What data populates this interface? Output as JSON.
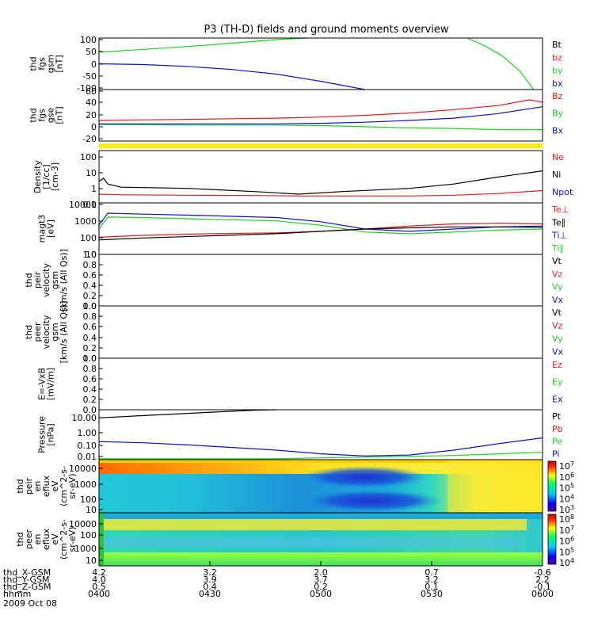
{
  "title": "P3 (TH-D) fields and ground moments overview",
  "colors": {
    "black": "#000000",
    "red": "#e41a1c",
    "green": "#1fd01f",
    "blue": "#1010c8",
    "yellow": "#ffee00"
  },
  "chart_data": [
    {
      "id": "fgs-gsm",
      "type": "line",
      "ylabel": [
        "thd",
        "fgs",
        "gsm",
        "[nT]"
      ],
      "yticks": [
        "100",
        "50",
        "0",
        "-50",
        "-100"
      ],
      "ylim": [
        -100,
        100
      ],
      "legend": [
        {
          "label": "Bt",
          "color": "#000000"
        },
        {
          "label": "bz",
          "color": "#e41a1c"
        },
        {
          "label": "by",
          "color": "#1fd01f"
        },
        {
          "label": "bx",
          "color": "#1010c8"
        }
      ],
      "series": [
        {
          "color": "#1fd01f",
          "x": [
            0,
            0.1,
            0.2,
            0.3,
            0.4,
            0.47
          ],
          "y": [
            45,
            56,
            67,
            80,
            94,
            100
          ]
        },
        {
          "color": "#1fd01f",
          "x": [
            0.83,
            0.87,
            0.91,
            0.95,
            0.98
          ],
          "y": [
            100,
            70,
            30,
            -30,
            -100
          ]
        },
        {
          "color": "#1010c8",
          "x": [
            0,
            0.1,
            0.2,
            0.3,
            0.4,
            0.5,
            0.6
          ],
          "y": [
            0,
            -3,
            -10,
            -22,
            -40,
            -68,
            -100
          ]
        }
      ]
    },
    {
      "id": "fgs-gse",
      "type": "line",
      "ylabel": [
        "thd",
        "fgs",
        "gse",
        "[nT]"
      ],
      "yticks": [
        "60",
        "40",
        "20",
        "0",
        "-20"
      ],
      "ylim": [
        -30,
        60
      ],
      "legend": [
        {
          "label": "Bz",
          "color": "#e41a1c"
        },
        {
          "label": "By",
          "color": "#1fd01f"
        },
        {
          "label": "Bx",
          "color": "#1010c8"
        }
      ],
      "series": [
        {
          "color": "#e41a1c",
          "x": [
            0,
            0.1,
            0.2,
            0.3,
            0.4,
            0.5,
            0.6,
            0.7,
            0.8,
            0.9,
            0.97,
            1
          ],
          "y": [
            6,
            7,
            8,
            9,
            10,
            12,
            15,
            19,
            25,
            32,
            42,
            38
          ]
        },
        {
          "color": "#1fd01f",
          "x": [
            0,
            0.2,
            0.4,
            0.5,
            0.6,
            0.7,
            0.8,
            0.9,
            1
          ],
          "y": [
            -1,
            -2,
            -2,
            -3,
            -5,
            -7,
            -8,
            -10,
            -10
          ]
        },
        {
          "color": "#1010c8",
          "x": [
            0,
            0.2,
            0.4,
            0.5,
            0.6,
            0.7,
            0.8,
            0.9,
            1
          ],
          "y": [
            0,
            0,
            0,
            1,
            3,
            6,
            10,
            18,
            30
          ]
        }
      ]
    },
    {
      "id": "density",
      "type": "line",
      "log": true,
      "ylabel": [
        "Density",
        "[1/cc]",
        "[cm-3]"
      ],
      "yticks": [
        "100",
        "10",
        "1",
        "0.1"
      ],
      "ylim": [
        0.05,
        200
      ],
      "legend": [
        {
          "label": "Ne",
          "color": "#e41a1c"
        },
        {
          "label": "Ni",
          "color": "#000000"
        },
        {
          "label": "Npot",
          "color": "#1010c8"
        }
      ],
      "series": [
        {
          "color": "#000000",
          "x": [
            0,
            0.01,
            0.02,
            0.05,
            0.2,
            0.35,
            0.45,
            0.55,
            0.7,
            0.8,
            0.9,
            1
          ],
          "y": [
            1.5,
            2.5,
            1,
            0.6,
            0.5,
            0.3,
            0.2,
            0.3,
            0.5,
            1,
            3,
            8
          ]
        },
        {
          "color": "#e41a1c",
          "x": [
            0,
            0.05,
            0.2,
            0.35,
            0.45,
            0.55,
            0.7,
            0.8,
            0.9,
            1
          ],
          "y": [
            0.2,
            0.18,
            0.17,
            0.16,
            0.15,
            0.15,
            0.15,
            0.17,
            0.22,
            0.35
          ]
        }
      ]
    },
    {
      "id": "temperature",
      "type": "line",
      "log": true,
      "ylabel": [
        "magt3",
        "[eV]"
      ],
      "yticks": [
        "10000",
        "1000",
        "100",
        "10"
      ],
      "ylim": [
        10,
        10000
      ],
      "legend": [
        {
          "label": "Te⊥",
          "color": "#e41a1c"
        },
        {
          "label": "Te∥",
          "color": "#000000"
        },
        {
          "label": "Ti⊥",
          "color": "#1010c8"
        },
        {
          "label": "Ti∥",
          "color": "#1fd01f"
        }
      ],
      "series": [
        {
          "color": "#1010c8",
          "x": [
            0,
            0.02,
            0.1,
            0.25,
            0.4,
            0.5,
            0.6,
            0.7,
            0.8,
            0.9,
            1
          ],
          "y": [
            500,
            2500,
            2200,
            1800,
            1400,
            800,
            300,
            220,
            300,
            400,
            450
          ]
        },
        {
          "color": "#1fd01f",
          "x": [
            0,
            0.02,
            0.1,
            0.25,
            0.4,
            0.5,
            0.6,
            0.7,
            0.8,
            0.9,
            1
          ],
          "y": [
            300,
            1500,
            1400,
            1100,
            900,
            500,
            200,
            160,
            200,
            260,
            300
          ]
        },
        {
          "color": "#e41a1c",
          "x": [
            0,
            0.1,
            0.25,
            0.4,
            0.5,
            0.6,
            0.7,
            0.8,
            0.9,
            1
          ],
          "y": [
            100,
            130,
            160,
            180,
            220,
            300,
            450,
            600,
            650,
            600
          ]
        },
        {
          "color": "#000000",
          "x": [
            0,
            0.1,
            0.25,
            0.4,
            0.5,
            0.6,
            0.7,
            0.8,
            0.9,
            1
          ],
          "y": [
            70,
            90,
            120,
            160,
            220,
            300,
            350,
            400,
            400,
            380
          ]
        }
      ]
    },
    {
      "id": "peir-velocity",
      "type": "line",
      "ylabel": [
        "thd",
        "peir",
        "velocity",
        "gsm",
        "[km/s (All Qs)]"
      ],
      "yticks": [
        "1.0",
        "0.8",
        "0.6",
        "0.4",
        "0.2",
        "0.0"
      ],
      "ylim": [
        0,
        1
      ],
      "legend": [
        {
          "label": "Vt",
          "color": "#000000"
        },
        {
          "label": "Vz",
          "color": "#e41a1c"
        },
        {
          "label": "Vy",
          "color": "#1fd01f"
        },
        {
          "label": "Vx",
          "color": "#1010c8"
        }
      ],
      "series": []
    },
    {
      "id": "peer-velocity",
      "type": "line",
      "ylabel": [
        "thd",
        "peer",
        "velocity",
        "gsm",
        "[km/s (All Qs)]"
      ],
      "yticks": [
        "1.0",
        "0.8",
        "0.6",
        "0.4",
        "0.2",
        "0.0"
      ],
      "ylim": [
        0,
        1
      ],
      "legend": [
        {
          "label": "Vt",
          "color": "#000000"
        },
        {
          "label": "Vz",
          "color": "#e41a1c"
        },
        {
          "label": "Vy",
          "color": "#1fd01f"
        },
        {
          "label": "Vx",
          "color": "#1010c8"
        }
      ],
      "series": []
    },
    {
      "id": "efield",
      "type": "line",
      "ylabel": [
        "E=-VxB",
        "[mV/m]"
      ],
      "yticks": [
        "1.0",
        "0.8",
        "0.6",
        "0.4",
        "0.2",
        "0.0"
      ],
      "ylim": [
        0,
        1
      ],
      "legend": [
        {
          "label": "Ez",
          "color": "#e41a1c"
        },
        {
          "label": "Ey",
          "color": "#1fd01f"
        },
        {
          "label": "Ex",
          "color": "#1010c8"
        }
      ],
      "series": []
    },
    {
      "id": "pressure",
      "type": "line",
      "log": true,
      "ylabel": [
        "Pressure",
        "[nPa]"
      ],
      "yticks": [
        "10.00",
        "1.00",
        "0.10",
        "0.01"
      ],
      "ylim": [
        0.005,
        60
      ],
      "legend": [
        {
          "label": "Pt",
          "color": "#000000"
        },
        {
          "label": "Pb",
          "color": "#e41a1c"
        },
        {
          "label": "Pe",
          "color": "#1fd01f"
        },
        {
          "label": "Pi",
          "color": "#1010c8"
        }
      ],
      "series": [
        {
          "color": "#000000",
          "x": [
            0,
            0.1,
            0.2,
            0.3,
            0.35,
            0.4
          ],
          "y": [
            13,
            20,
            30,
            45,
            55,
            60
          ]
        },
        {
          "color": "#1010c8",
          "x": [
            0,
            0.1,
            0.2,
            0.3,
            0.4,
            0.5,
            0.6,
            0.7,
            0.8,
            0.9,
            1
          ],
          "y": [
            0.15,
            0.12,
            0.08,
            0.05,
            0.03,
            0.015,
            0.01,
            0.012,
            0.03,
            0.1,
            0.3
          ]
        },
        {
          "color": "#1fd01f",
          "x": [
            0,
            0.2,
            0.4,
            0.5,
            0.6,
            0.7,
            0.8,
            0.9,
            1
          ],
          "y": [
            0.006,
            0.006,
            0.006,
            0.007,
            0.008,
            0.009,
            0.011,
            0.015,
            0.02
          ]
        }
      ]
    },
    {
      "id": "peir-eflux",
      "type": "heatmap",
      "ylabel": [
        "thd",
        "peir",
        "en",
        "eflux",
        "eV",
        "(cm^2-s-",
        "sr-eV)"
      ],
      "yticks": [
        "10000",
        "1000",
        "100",
        "10"
      ],
      "colorbar_ticks": [
        "10^7",
        "10^6",
        "10^5",
        "10^4",
        "10^3"
      ]
    },
    {
      "id": "peer-eflux",
      "type": "heatmap",
      "ylabel": [
        "thd",
        "peer",
        "en",
        "eflux",
        "eV",
        "(cm^2-s-",
        "sr-eV)"
      ],
      "yticks": [
        "10000",
        "1000",
        "100",
        "10"
      ],
      "colorbar_ticks": [
        "10^8",
        "10^7",
        "10^6",
        "10^5",
        "10^4"
      ]
    }
  ],
  "xaxis": {
    "rows": [
      {
        "label": "thd_X-GSM",
        "values": [
          "4.2",
          "3.2",
          "2.0",
          "0.7",
          "-0.6"
        ]
      },
      {
        "label": "thd_Y-GSM",
        "values": [
          "4.0",
          "3.9",
          "3.7",
          "3.2",
          "2.2"
        ]
      },
      {
        "label": "thd_Z-GSM",
        "values": [
          "0.5",
          "0.4",
          "0.2",
          "0.1",
          "-0.1"
        ]
      },
      {
        "label": "hhmm",
        "values": [
          "0400",
          "0430",
          "0500",
          "0530",
          "0600"
        ]
      }
    ],
    "date": "2009 Oct 08"
  }
}
